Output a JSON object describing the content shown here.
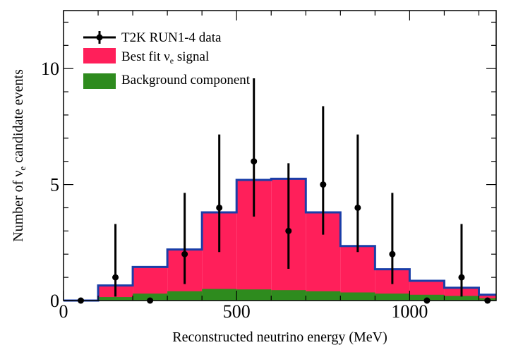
{
  "chart_data": {
    "type": "bar",
    "xlabel": "Reconstructed neutrino energy (MeV)",
    "ylabel_prefix": "Number of ν",
    "ylabel_sub": "e",
    "ylabel_suffix": " candidate events",
    "xlim": [
      0,
      1250
    ],
    "ylim": [
      0,
      12.5
    ],
    "xticks": [
      0,
      500,
      1000
    ],
    "yticks": [
      0,
      5,
      10
    ],
    "grid": false,
    "legend_position": "top-left",
    "bin_edges": [
      0,
      100,
      200,
      300,
      400,
      500,
      600,
      700,
      800,
      900,
      1000,
      1100,
      1200,
      1250
    ],
    "series": [
      {
        "name": "Best fit ν",
        "name_sub": "e",
        "name_suffix": " signal",
        "kind": "stacked-histogram",
        "total_values": [
          0.0,
          0.65,
          1.45,
          2.2,
          3.8,
          5.2,
          5.25,
          3.8,
          2.35,
          1.35,
          0.85,
          0.55,
          0.25
        ],
        "color": "#ff1f5a",
        "outline": "#1a3ea8"
      },
      {
        "name": "Background component",
        "kind": "stacked-histogram",
        "values": [
          0.0,
          0.15,
          0.3,
          0.4,
          0.5,
          0.48,
          0.45,
          0.4,
          0.35,
          0.3,
          0.25,
          0.2,
          0.1
        ],
        "color": "#2e8b1e"
      },
      {
        "name": "T2K RUN1-4 data",
        "kind": "points-with-errors",
        "x": [
          50,
          150,
          250,
          350,
          450,
          550,
          650,
          750,
          850,
          950,
          1050,
          1150,
          1225
        ],
        "y": [
          0,
          1,
          0,
          2,
          4,
          6,
          3,
          5,
          4,
          2,
          0,
          1,
          0
        ],
        "err_low": [
          0,
          0.83,
          0,
          1.29,
          1.91,
          2.38,
          1.63,
          2.16,
          1.91,
          1.29,
          0,
          0.83,
          0
        ],
        "err_high": [
          0,
          2.3,
          0,
          2.64,
          3.16,
          3.58,
          2.92,
          3.38,
          3.16,
          2.64,
          0,
          2.3,
          0
        ],
        "color": "#000000"
      }
    ]
  }
}
